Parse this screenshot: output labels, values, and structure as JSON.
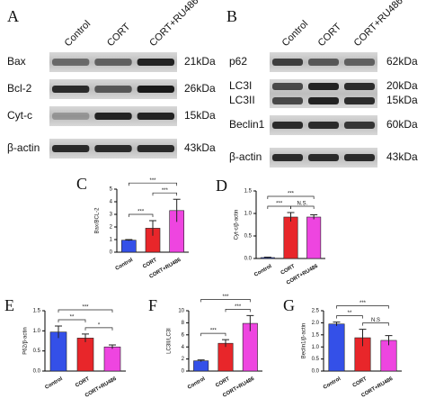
{
  "blots": [
    {
      "panel": "A",
      "columns": [
        "Control",
        "CORT",
        "CORT+RU486"
      ],
      "rows": [
        {
          "labels": [
            "Bax"
          ],
          "kda": [
            "21kDa"
          ]
        },
        {
          "labels": [
            "Bcl-2"
          ],
          "kda": [
            "26kDa"
          ]
        },
        {
          "labels": [
            "Cyt-c"
          ],
          "kda": [
            "15kDa"
          ]
        },
        {
          "labels": [
            "β-actin"
          ],
          "kda": [
            "43kDa"
          ]
        }
      ]
    },
    {
      "panel": "B",
      "columns": [
        "Control",
        "CORT",
        "CORT+RU486"
      ],
      "rows": [
        {
          "labels": [
            "p62"
          ],
          "kda": [
            "62kDa"
          ]
        },
        {
          "labels": [
            "LC3I",
            "LC3II"
          ],
          "kda": [
            "20kDa",
            "15kDa"
          ]
        },
        {
          "labels": [
            "Beclin1"
          ],
          "kda": [
            "60kDa"
          ]
        },
        {
          "labels": [
            "β-actin"
          ],
          "kda": [
            "43kDa"
          ]
        }
      ]
    }
  ],
  "chart_data": [
    {
      "type": "bar",
      "panel": "C",
      "ylabel": "Bax/BCL-2",
      "categories": [
        "Control",
        "CORT",
        "CORT+RU486"
      ],
      "colors": [
        "#3450e8",
        "#e8262a",
        "#ee45e0"
      ],
      "values": [
        0.95,
        1.9,
        3.3
      ],
      "errors": [
        0.05,
        0.6,
        0.9
      ],
      "ylim": [
        0,
        5
      ],
      "yticks": [
        0,
        1,
        2,
        3,
        4,
        5
      ],
      "significance": [
        "***",
        "***",
        "***"
      ]
    },
    {
      "type": "bar",
      "panel": "D",
      "ylabel": "Cyt-c/β-actin",
      "categories": [
        "Control",
        "CORT",
        "CORT+RU486"
      ],
      "colors": [
        "#3450e8",
        "#e8262a",
        "#ee45e0"
      ],
      "values": [
        0.02,
        0.92,
        0.92
      ],
      "errors": [
        0.01,
        0.1,
        0.05
      ],
      "ylim": [
        0,
        1.5
      ],
      "yticks": [
        {
          "value": 0,
          "label": "0.0"
        },
        0.5,
        {
          "value": 1,
          "label": "1.0"
        },
        1.5
      ],
      "significance": [
        "***",
        "N.S.",
        "***"
      ]
    },
    {
      "type": "bar",
      "panel": "E",
      "ylabel": "P62/β-actin",
      "categories": [
        "Control",
        "CORT",
        "CORT+RU486"
      ],
      "colors": [
        "#3450e8",
        "#e8262a",
        "#ee45e0"
      ],
      "values": [
        0.97,
        0.82,
        0.6
      ],
      "errors": [
        0.15,
        0.1,
        0.05
      ],
      "ylim": [
        0,
        1.5
      ],
      "yticks": [
        {
          "value": 0,
          "label": "0.0"
        },
        0.5,
        {
          "value": 1,
          "label": "1.0"
        },
        1.5
      ],
      "significance": [
        "**",
        "*",
        "***"
      ]
    },
    {
      "type": "bar",
      "panel": "F",
      "ylabel": "LC3II/LC3I",
      "categories": [
        "Control",
        "CORT",
        "CORT+RU486"
      ],
      "colors": [
        "#3450e8",
        "#e8262a",
        "#ee45e0"
      ],
      "values": [
        1.7,
        4.6,
        7.9
      ],
      "errors": [
        0.15,
        0.6,
        1.3
      ],
      "ylim": [
        0,
        10
      ],
      "yticks": [
        0,
        2,
        4,
        6,
        8,
        10
      ],
      "significance": [
        "***",
        "***",
        "***"
      ]
    },
    {
      "type": "bar",
      "panel": "G",
      "ylabel": "Beclin1/β-actin",
      "categories": [
        "Control",
        "CORT",
        "CORT+RU486"
      ],
      "colors": [
        "#3450e8",
        "#e8262a",
        "#ee45e0"
      ],
      "values": [
        1.95,
        1.38,
        1.27
      ],
      "errors": [
        0.08,
        0.35,
        0.2
      ],
      "ylim": [
        0,
        2.5
      ],
      "yticks": [
        {
          "value": 0,
          "label": "0.0"
        },
        0.5,
        {
          "value": 1,
          "label": "1.0"
        },
        1.5,
        {
          "value": 2,
          "label": "2.0"
        },
        2.5
      ],
      "significance": [
        "**",
        "N.S",
        "***"
      ]
    }
  ]
}
